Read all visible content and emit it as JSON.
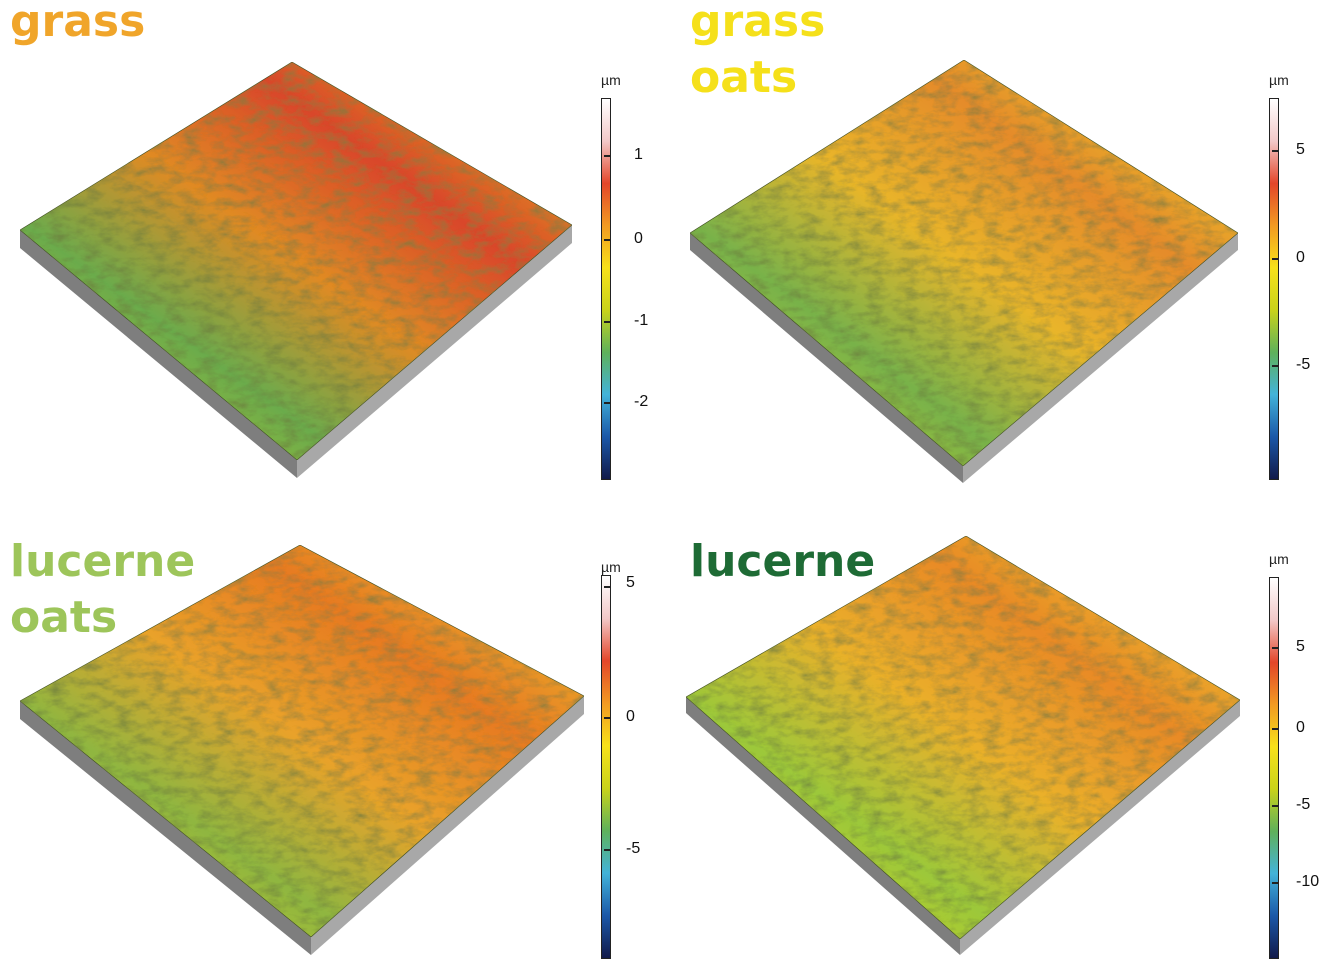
{
  "panels": [
    {
      "id": "grass",
      "title_lines": [
        "grass"
      ],
      "title_color": "#f0a52a",
      "scale": {
        "unit": "µm",
        "min": -2.9,
        "max": 1.8,
        "ticks": [
          1,
          0,
          -1,
          -2
        ],
        "tick_labels": [
          "1",
          "0",
          "-1",
          "-2"
        ]
      },
      "surface_colors": [
        "#6bab4c",
        "#c9cf1f",
        "#e08a24",
        "#d9462a"
      ]
    },
    {
      "id": "grass-oats",
      "title_lines": [
        "grass",
        "oats"
      ],
      "title_color": "#f5e01a",
      "scale": {
        "unit": "µm",
        "min": -10,
        "max": 7.5,
        "ticks": [
          5,
          0,
          -5
        ],
        "tick_labels": [
          "5",
          "0",
          "-5"
        ]
      },
      "surface_colors": [
        "#78b24a",
        "#d8d51c",
        "#e9b52a",
        "#e58b2b"
      ]
    },
    {
      "id": "lucerne-oats",
      "title_lines": [
        "lucerne",
        "oats"
      ],
      "title_color": "#9dc55a",
      "scale": {
        "unit": "µm",
        "min": -9,
        "max": 5.5,
        "ticks": [
          5,
          0,
          -5
        ],
        "tick_labels": [
          "5",
          "0",
          "-5"
        ]
      },
      "surface_colors": [
        "#8fb640",
        "#e0d21e",
        "#e9a22a",
        "#e77a22"
      ]
    },
    {
      "id": "lucerne",
      "title_lines": [
        "lucerne"
      ],
      "title_color": "#1e6b35",
      "scale": {
        "unit": "µm",
        "min": -14,
        "max": 9,
        "ticks": [
          5,
          0,
          -5,
          -10
        ],
        "tick_labels": [
          "5",
          "0",
          "-5",
          "-10"
        ]
      },
      "surface_colors": [
        "#9cc83a",
        "#e3d51c",
        "#eab02b",
        "#e98a27"
      ]
    }
  ],
  "colormap": [
    "#121a4a",
    "#1b58a8",
    "#43b3d9",
    "#5fb15b",
    "#c9d31a",
    "#f7e11a",
    "#f29a22",
    "#e3462a",
    "#f2c8c8",
    "#ffffff"
  ]
}
